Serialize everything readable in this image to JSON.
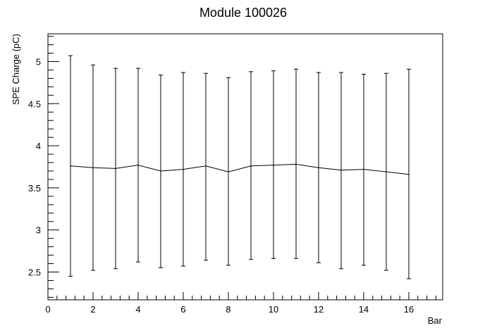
{
  "chart_data": {
    "type": "line",
    "title": "Module 100026",
    "xlabel": "Bar",
    "ylabel": "SPE Charge (pC)",
    "xlim": [
      0,
      17.5
    ],
    "ylim": [
      2.17,
      5.33
    ],
    "x_ticks": [
      0,
      2,
      4,
      6,
      8,
      10,
      12,
      14,
      16
    ],
    "y_ticks": [
      2.5,
      3,
      3.5,
      4,
      4.5,
      5
    ],
    "x_tick_labels": [
      "0",
      "2",
      "4",
      "6",
      "8",
      "10",
      "12",
      "14",
      "16"
    ],
    "y_tick_labels": [
      "2.5",
      "3",
      "3.5",
      "4",
      "4.5",
      "5"
    ],
    "grid": false,
    "legend": "none",
    "line_color": "#000000",
    "series": [
      {
        "x": [
          1,
          2,
          3,
          4,
          5,
          6,
          7,
          8,
          9,
          10,
          11,
          12,
          13,
          14,
          15,
          16
        ],
        "y": [
          3.76,
          3.74,
          3.73,
          3.77,
          3.7,
          3.72,
          3.76,
          3.69,
          3.76,
          3.77,
          3.78,
          3.74,
          3.71,
          3.72,
          3.69,
          3.66
        ],
        "y_low": [
          2.45,
          2.52,
          2.54,
          2.62,
          2.55,
          2.57,
          2.64,
          2.58,
          2.65,
          2.66,
          2.66,
          2.61,
          2.54,
          2.58,
          2.52,
          2.42
        ],
        "y_high": [
          5.07,
          4.96,
          4.92,
          4.92,
          4.84,
          4.87,
          4.86,
          4.81,
          4.88,
          4.89,
          4.91,
          4.87,
          4.87,
          4.85,
          4.86,
          4.91
        ]
      }
    ]
  }
}
